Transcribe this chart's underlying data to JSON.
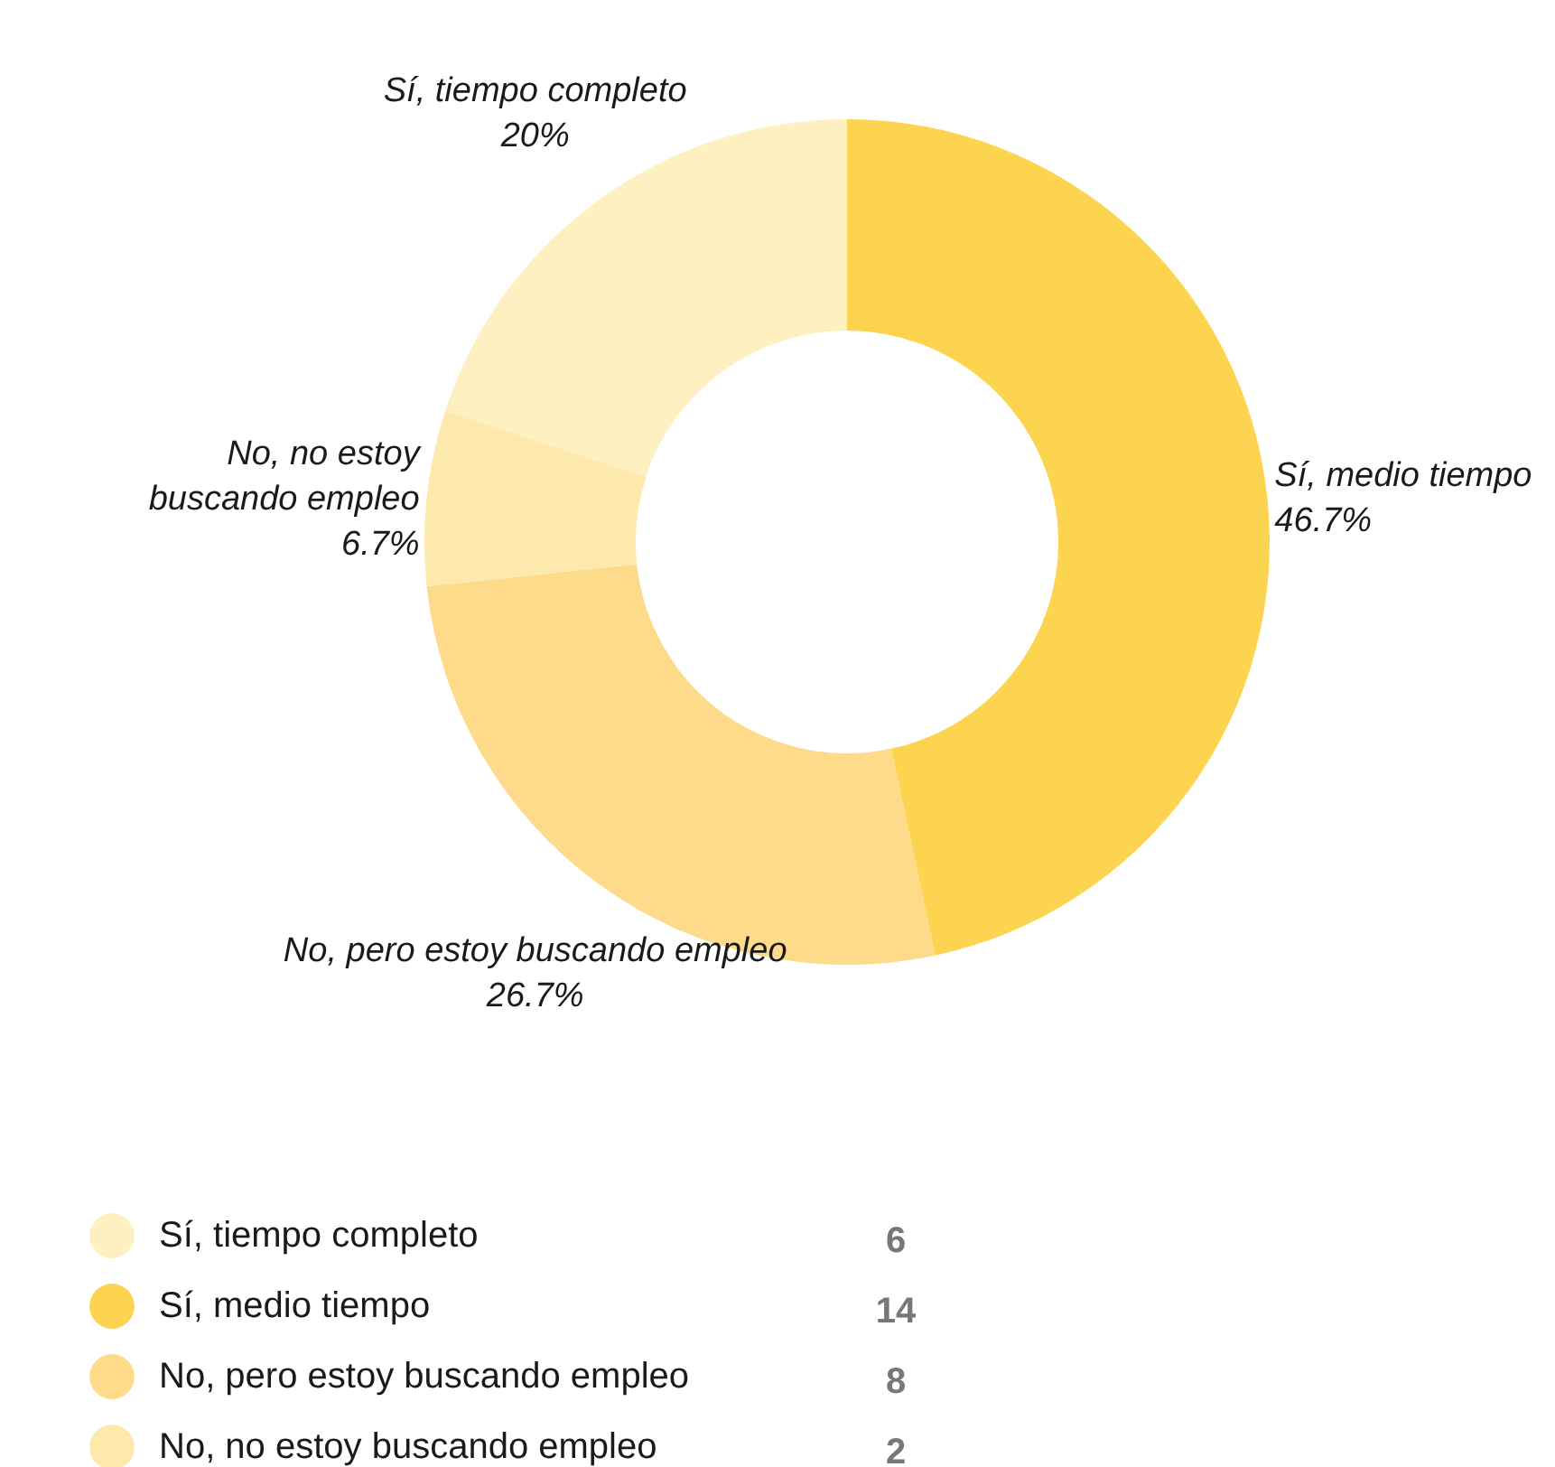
{
  "chart_data": {
    "type": "donut",
    "categories": [
      "Sí, tiempo completo",
      "Sí, medio tiempo",
      "No, pero estoy buscando empleo",
      "No, no estoy buscando empleo"
    ],
    "values": [
      20,
      46.7,
      26.7,
      6.7
    ],
    "annotations": [
      "6",
      "14",
      "8",
      "2"
    ],
    "colors": [
      "#fef0c1",
      "#fdd44f",
      "#fddb8b",
      "#fee9ad"
    ],
    "value_labels": [
      "20%",
      "46.7%",
      "26.7%",
      "6.7%"
    ],
    "legend": "bottom left"
  }
}
